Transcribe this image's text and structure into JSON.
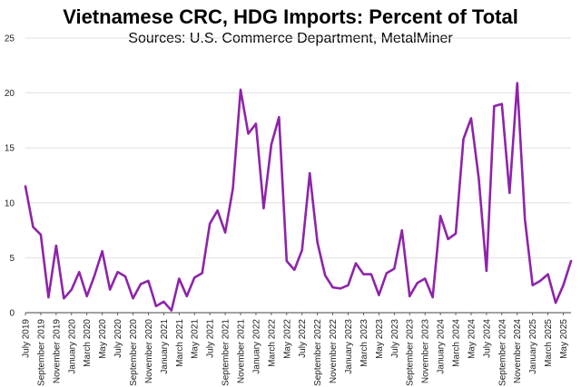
{
  "chart_data": {
    "type": "line",
    "title": "Vietnamese CRC, HDG Imports: Percent of Total",
    "subtitle": "Sources: U.S. Commerce Department, MetalMiner",
    "xlabel": "",
    "ylabel": "",
    "ylim": [
      0,
      25
    ],
    "yticks": [
      0,
      5,
      10,
      15,
      20,
      25
    ],
    "grid": "horizontal",
    "legend": "none",
    "line_color": "#8e24aa",
    "tick_labels": [
      "July 2019",
      "September 2019",
      "November 2019",
      "January 2020",
      "March 2020",
      "May 2020",
      "July 2020",
      "September 2020",
      "November 2020",
      "January 2021",
      "March 2021",
      "May 2021",
      "July 2021",
      "September 2021",
      "November 2021",
      "January 2022",
      "March 2022",
      "May 2022",
      "July 2022",
      "September 2022",
      "November 2022",
      "January 2023",
      "March 2023",
      "May 2023",
      "July 2023",
      "September 2023",
      "November 2023",
      "January 2024",
      "March 2024",
      "May 2024",
      "July 2024",
      "September 2024",
      "November 2024",
      "January 2025",
      "March 2025",
      "May 2025"
    ],
    "series": [
      {
        "values": [
          11.5,
          7.8,
          7.1,
          1.4,
          6.1,
          1.3,
          2.1,
          3.7,
          1.5,
          3.4,
          5.6,
          2.1,
          3.7,
          3.3,
          1.3,
          2.6,
          2.9,
          0.6,
          1.0,
          0.2,
          3.1,
          1.5,
          3.2,
          3.6,
          8.1,
          9.3,
          7.3,
          11.3,
          20.3,
          16.3,
          17.2,
          9.5,
          15.3,
          17.8,
          4.7,
          3.9,
          5.7,
          12.7,
          6.4,
          3.4,
          2.3,
          2.2,
          2.5,
          4.5,
          3.5,
          3.5,
          1.6,
          3.6,
          4.0,
          7.5,
          1.5,
          2.7,
          3.1,
          1.4,
          8.8,
          6.7,
          7.2,
          15.8,
          17.7,
          12.2,
          3.8,
          18.8,
          19.0,
          10.9,
          20.9,
          8.5,
          2.5,
          2.9,
          3.5,
          0.9,
          2.5,
          4.7
        ]
      }
    ]
  }
}
